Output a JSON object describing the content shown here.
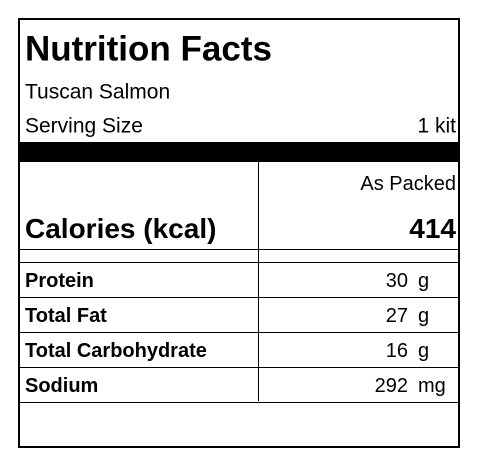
{
  "header": {
    "title": "Nutrition Facts",
    "product": "Tuscan Salmon",
    "serving_label": "Serving Size",
    "serving_value": "1 kit"
  },
  "table": {
    "column_header": "As Packed",
    "calories": {
      "label": "Calories (kcal)",
      "value": 414
    },
    "rows": [
      {
        "name": "Protein",
        "amount": 30,
        "unit": "g"
      },
      {
        "name": "Total Fat",
        "amount": 27,
        "unit": "g"
      },
      {
        "name": "Total Carbohydrate",
        "amount": 16,
        "unit": "g"
      },
      {
        "name": "Sodium",
        "amount": 292,
        "unit": "mg"
      }
    ]
  }
}
